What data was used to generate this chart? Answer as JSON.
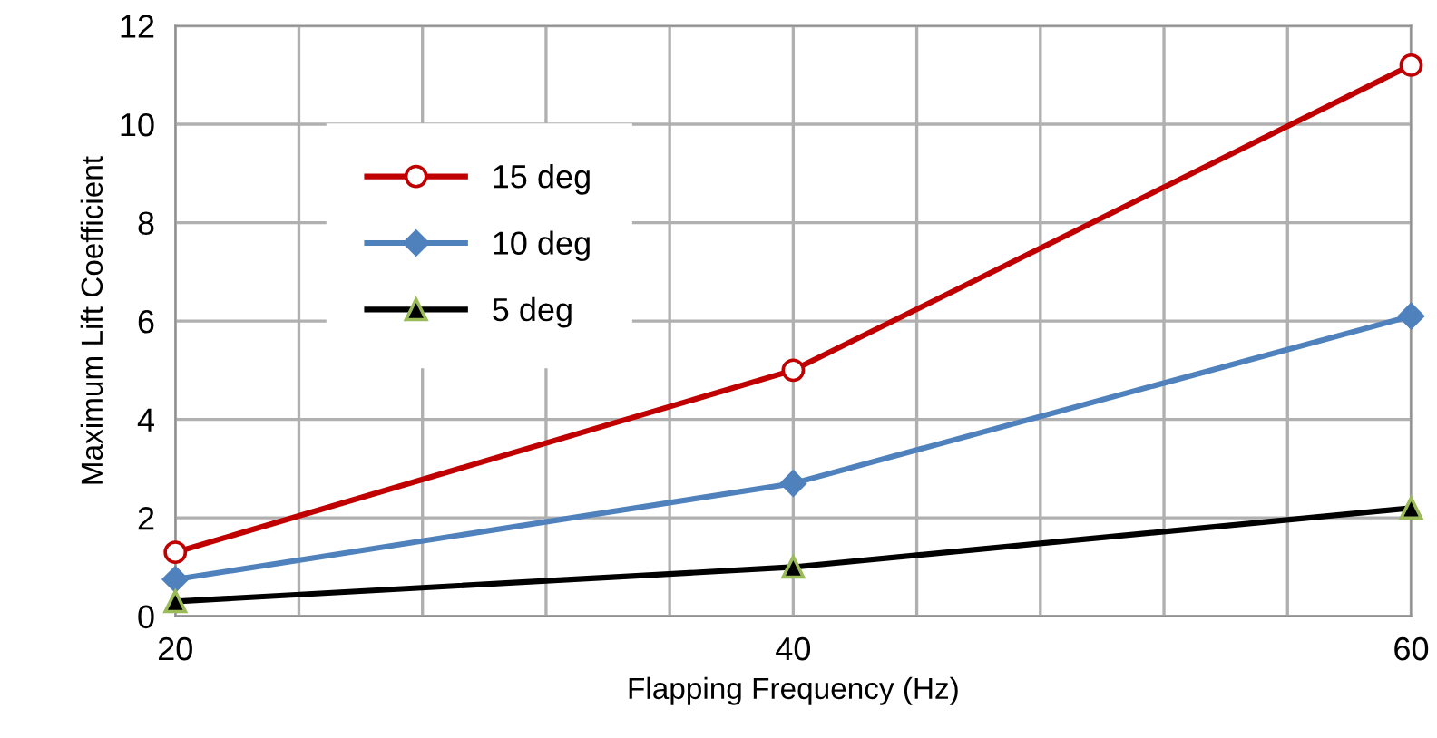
{
  "chart_data": {
    "type": "line",
    "xlabel": "Flapping Frequency (Hz)",
    "ylabel": "Maximum Lift Coefficient",
    "x": [
      20,
      40,
      60
    ],
    "series": [
      {
        "name": "15 deg",
        "color": "#c00000",
        "marker": "circle",
        "values": [
          1.3,
          5.0,
          11.2
        ]
      },
      {
        "name": "10 deg",
        "color": "#4f81bd",
        "marker": "diamond",
        "values": [
          0.75,
          2.7,
          6.1
        ]
      },
      {
        "name": "5 deg",
        "color": "#000000",
        "marker": "triangle",
        "values": [
          0.3,
          1.0,
          2.2
        ]
      }
    ],
    "xlim": [
      20,
      60
    ],
    "xticks": [
      20,
      {
        "value": 24,
        "label": null
      },
      {
        "value": 28,
        "label": null
      },
      {
        "value": 32,
        "label": null
      },
      {
        "value": 36,
        "label": null
      },
      40,
      {
        "value": 44,
        "label": null
      },
      {
        "value": 48,
        "label": null
      },
      {
        "value": 52,
        "label": null
      },
      {
        "value": 56,
        "label": null
      },
      60
    ],
    "ylim": [
      0,
      12
    ],
    "yticks": [
      0,
      2,
      4,
      6,
      8,
      10,
      12
    ],
    "grid": true,
    "legend": "top left",
    "line_style": "solid"
  }
}
